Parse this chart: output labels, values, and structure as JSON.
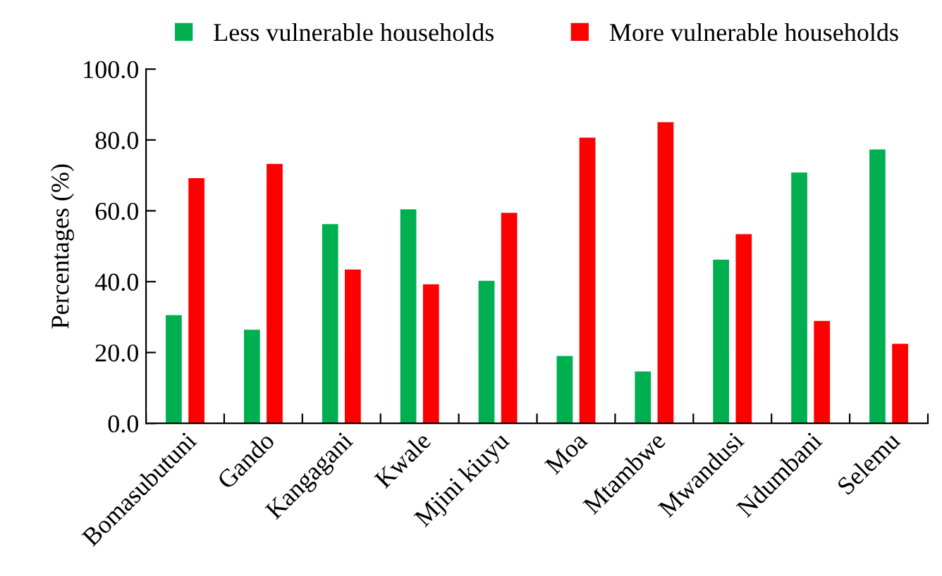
{
  "chart_data": {
    "type": "bar",
    "ylabel": "Percentages (%)",
    "categories": [
      "Bomasubutuni",
      "Gando",
      "Kangagani",
      "Kwale",
      "Mjini kiuyu",
      "Moa",
      "Mtambwe",
      "Mwandusi",
      "Ndumbani",
      "Selemu"
    ],
    "series": [
      {
        "name": "Less vulnerable households",
        "color": "#00b050",
        "values": [
          30.7,
          26.6,
          56.4,
          60.6,
          40.4,
          19.2,
          14.8,
          46.4,
          71.0,
          77.5
        ]
      },
      {
        "name": "More vulnerable households",
        "color": "#ff0000",
        "values": [
          69.4,
          73.4,
          43.6,
          39.4,
          59.6,
          80.8,
          85.2,
          53.6,
          29.1,
          22.6
        ]
      }
    ],
    "ylim": [
      0,
      100
    ],
    "yticks": [
      {
        "value": 0,
        "label": "0.0"
      },
      {
        "value": 20,
        "label": "20.0"
      },
      {
        "value": 40,
        "label": "40.0"
      },
      {
        "value": 60,
        "label": "60.0"
      },
      {
        "value": 80,
        "label": "80.0"
      },
      {
        "value": 100,
        "label": "100.0"
      }
    ],
    "grid": false,
    "legend": "top"
  }
}
